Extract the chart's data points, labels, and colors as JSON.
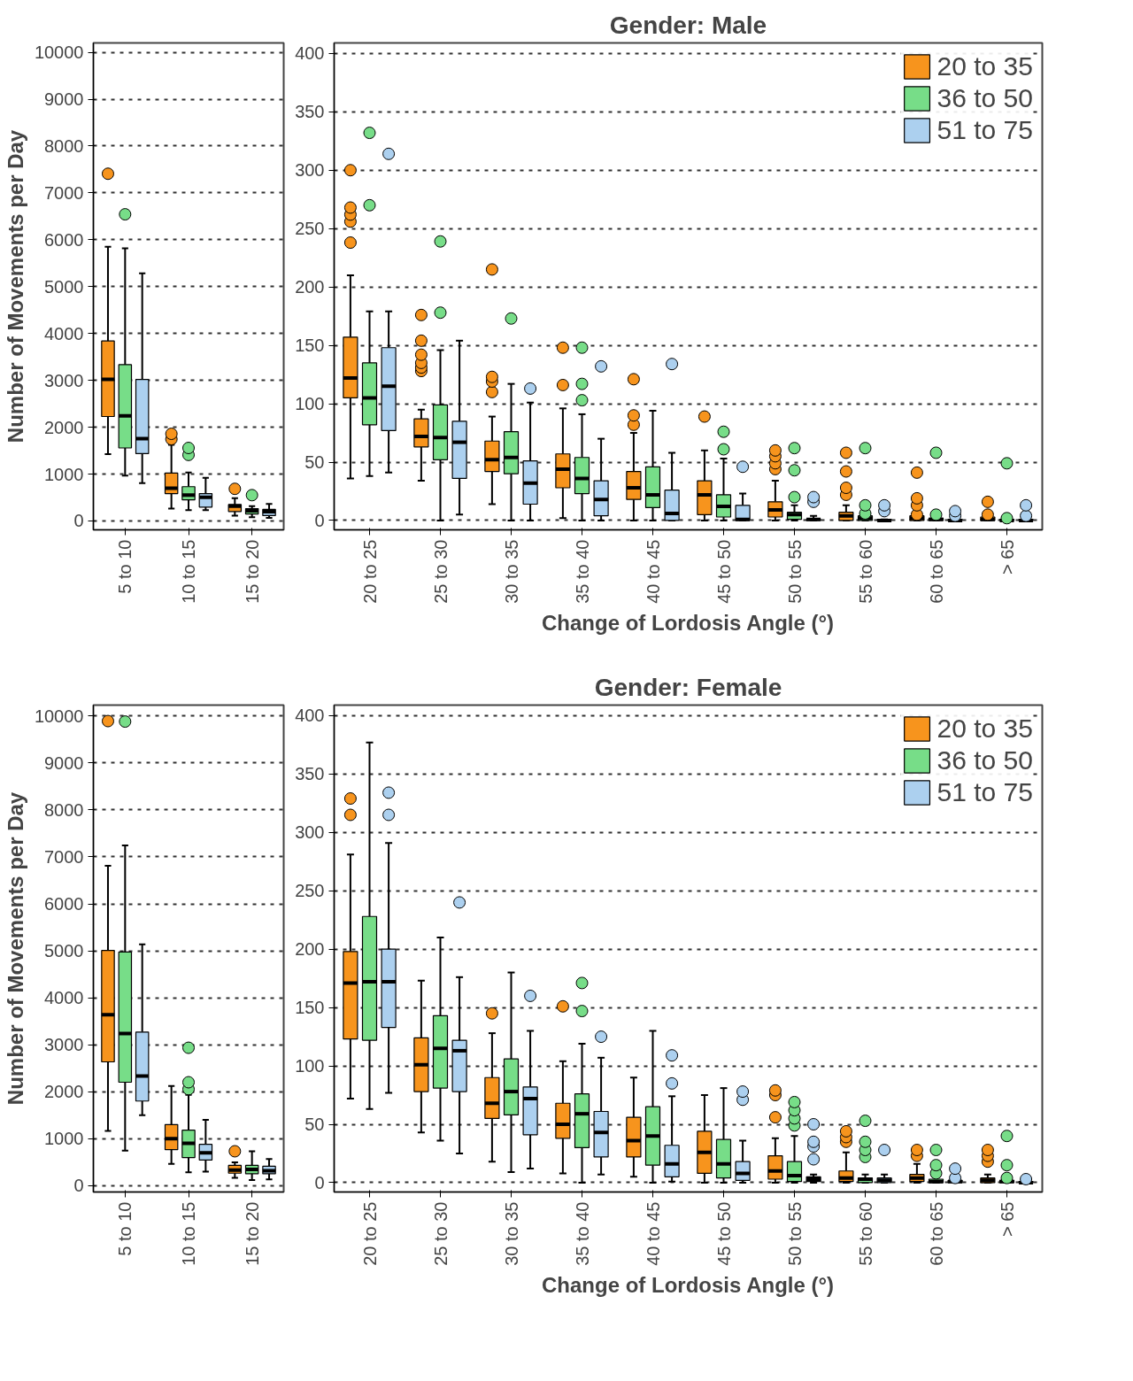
{
  "chart_data": [
    {
      "type": "box",
      "categories": [
        "5 to 10",
        "10 to 15",
        "15 to 20"
      ],
      "ylabel": "Number of Movements per Day",
      "ylim": [
        -190,
        10200
      ],
      "yticks": [
        0,
        1000,
        2000,
        3000,
        4000,
        5000,
        6000,
        7000,
        8000,
        9000,
        10000
      ],
      "grid": "y",
      "marker": "circle",
      "series": [
        {
          "color": "#f7941d",
          "boxes": [
            {
              "low": 1423,
              "q1": 2228,
              "median": 3020,
              "q3": 3839,
              "high": 5852,
              "outliers": [
                7409
              ]
            },
            {
              "low": 262,
              "q1": 584,
              "median": 698,
              "q3": 1020,
              "high": 1624,
              "outliers": [
                1745,
                1859
              ]
            },
            {
              "low": 114,
              "q1": 201,
              "median": 315,
              "q3": 349,
              "high": 483,
              "outliers": [
                685
              ]
            }
          ]
        },
        {
          "color": "#77dd88",
          "boxes": [
            {
              "low": 966,
              "q1": 1557,
              "median": 2241,
              "q3": 3335,
              "high": 5818,
              "outliers": [
                6543
              ]
            },
            {
              "low": 228,
              "q1": 450,
              "median": 550,
              "q3": 731,
              "high": 1033,
              "outliers": [
                1409,
                1557
              ]
            },
            {
              "low": 80,
              "q1": 148,
              "median": 215,
              "q3": 262,
              "high": 315,
              "outliers": [
                550
              ]
            }
          ]
        },
        {
          "color": "#acd0ef",
          "boxes": [
            {
              "low": 805,
              "q1": 1436,
              "median": 1758,
              "q3": 3020,
              "high": 5282
            },
            {
              "low": 228,
              "q1": 295,
              "median": 503,
              "q3": 584,
              "high": 919
            },
            {
              "low": 67,
              "q1": 114,
              "median": 195,
              "q3": 248,
              "high": 362
            }
          ]
        }
      ]
    },
    {
      "type": "box",
      "title": "Gender: Male",
      "xlabel": "Change of Lordosis Angle (°)",
      "categories": [
        "20 to 25",
        "25 to 30",
        "30 to 35",
        "35 to 40",
        "40 to 45",
        "45 to 50",
        "50 to 55",
        "55 to 60",
        "60 to 65",
        "> 65"
      ],
      "ylim": [
        -8,
        409
      ],
      "yticks": [
        0,
        50,
        100,
        150,
        200,
        250,
        300,
        350,
        400
      ],
      "grid": "y",
      "marker": "circle",
      "legend": "top right",
      "series": [
        {
          "name": "20 to 35",
          "color": "#f7941d",
          "boxes": [
            {
              "low": 36,
              "q1": 105,
              "median": 122,
              "q3": 157,
              "high": 210,
              "outliers": [
                238,
                256,
                262,
                268,
                300
              ]
            },
            {
              "low": 34,
              "q1": 63,
              "median": 72,
              "q3": 87,
              "high": 95,
              "outliers": [
                128,
                131,
                135,
                142,
                154,
                176
              ]
            },
            {
              "low": 14,
              "q1": 42,
              "median": 52,
              "q3": 68,
              "high": 89,
              "outliers": [
                110,
                119,
                123,
                215
              ]
            },
            {
              "low": 2,
              "q1": 28,
              "median": 44,
              "q3": 57,
              "high": 96,
              "outliers": [
                116,
                148
              ]
            },
            {
              "low": 0,
              "q1": 18,
              "median": 28,
              "q3": 42,
              "high": 75,
              "outliers": [
                82,
                90,
                121
              ]
            },
            {
              "low": 0,
              "q1": 5,
              "median": 22,
              "q3": 34,
              "high": 60,
              "outliers": [
                89
              ]
            },
            {
              "low": 0,
              "q1": 3,
              "median": 9,
              "q3": 16,
              "high": 34,
              "outliers": [
                44,
                49,
                55,
                60
              ]
            },
            {
              "low": 0,
              "q1": 0,
              "median": 4,
              "q3": 7,
              "high": 13,
              "outliers": [
                22,
                28,
                42,
                58
              ]
            },
            {
              "low": 0,
              "q1": 0,
              "median": 2,
              "q3": 4,
              "high": 4,
              "outliers": [
                5,
                13,
                19,
                41
              ]
            },
            {
              "low": 0,
              "q1": 0,
              "median": 1,
              "q3": 3,
              "high": 4,
              "outliers": [
                5,
                16
              ]
            }
          ]
        },
        {
          "name": "36 to 50",
          "color": "#77dd88",
          "boxes": [
            {
              "low": 38,
              "q1": 82,
              "median": 105,
              "q3": 135,
              "high": 179,
              "outliers": [
                270,
                332
              ]
            },
            {
              "low": 0,
              "q1": 52,
              "median": 71,
              "q3": 99,
              "high": 146,
              "outliers": [
                178,
                239
              ]
            },
            {
              "low": 0,
              "q1": 40,
              "median": 54,
              "q3": 76,
              "high": 117,
              "outliers": [
                173
              ]
            },
            {
              "low": 0,
              "q1": 23,
              "median": 36,
              "q3": 54,
              "high": 91,
              "outliers": [
                103,
                117,
                148
              ]
            },
            {
              "low": 0,
              "q1": 11,
              "median": 22,
              "q3": 46,
              "high": 94
            },
            {
              "low": 0,
              "q1": 3,
              "median": 12,
              "q3": 22,
              "high": 53,
              "outliers": [
                61,
                76
              ]
            },
            {
              "low": 0,
              "q1": 1,
              "median": 5,
              "q3": 7,
              "high": 13,
              "outliers": [
                20,
                43,
                62
              ]
            },
            {
              "low": 0,
              "q1": 0,
              "median": 2,
              "q3": 4,
              "high": 5,
              "outliers": [
                6,
                13,
                62
              ]
            },
            {
              "low": 0,
              "q1": 0,
              "median": 1,
              "q3": 2,
              "high": 3,
              "outliers": [
                5,
                58
              ]
            },
            {
              "low": 0,
              "q1": 0,
              "median": 0,
              "q3": 1,
              "high": 1,
              "outliers": [
                2,
                49
              ]
            }
          ]
        },
        {
          "name": "51 to 75",
          "color": "#acd0ef",
          "boxes": [
            {
              "low": 41,
              "q1": 77,
              "median": 115,
              "q3": 148,
              "high": 179,
              "outliers": [
                314
              ]
            },
            {
              "low": 5,
              "q1": 36,
              "median": 67,
              "q3": 85,
              "high": 154
            },
            {
              "low": 0,
              "q1": 14,
              "median": 32,
              "q3": 51,
              "high": 101,
              "outliers": [
                113
              ]
            },
            {
              "low": 0,
              "q1": 4,
              "median": 18,
              "q3": 34,
              "high": 70,
              "outliers": [
                132
              ]
            },
            {
              "low": 0,
              "q1": 0,
              "median": 6,
              "q3": 26,
              "high": 58,
              "outliers": [
                134
              ]
            },
            {
              "low": 0,
              "q1": 0,
              "median": 1,
              "q3": 13,
              "high": 23,
              "outliers": [
                46
              ]
            },
            {
              "low": 0,
              "q1": 0,
              "median": 1,
              "q3": 1,
              "high": 4,
              "outliers": [
                16,
                20
              ]
            },
            {
              "low": 0,
              "q1": 0,
              "median": 0,
              "q3": 1,
              "high": 1,
              "outliers": [
                8,
                13
              ]
            },
            {
              "low": 0,
              "q1": 0,
              "median": 0,
              "q3": 1,
              "high": 1,
              "outliers": [
                4,
                8
              ]
            },
            {
              "low": 0,
              "q1": 0,
              "median": 0,
              "q3": 1,
              "high": 1,
              "outliers": [
                4,
                13
              ]
            }
          ]
        }
      ]
    },
    {
      "type": "box",
      "categories": [
        "5 to 10",
        "10 to 15",
        "15 to 20"
      ],
      "ylabel": "Number of Movements per Day",
      "ylim": [
        -133,
        10230
      ],
      "yticks": [
        0,
        1000,
        2000,
        3000,
        4000,
        5000,
        6000,
        7000,
        8000,
        9000,
        10000
      ],
      "grid": "y",
      "marker": "circle",
      "series": [
        {
          "color": "#f7941d",
          "boxes": [
            {
              "low": 1168,
              "q1": 2637,
              "median": 3638,
              "q3": 5007,
              "high": 6810,
              "outliers": [
                9890
              ]
            },
            {
              "low": 467,
              "q1": 768,
              "median": 1001,
              "q3": 1302,
              "high": 2123
            },
            {
              "low": 167,
              "q1": 267,
              "median": 334,
              "q3": 434,
              "high": 500,
              "outliers": [
                734
              ]
            }
          ]
        },
        {
          "color": "#77dd88",
          "boxes": [
            {
              "low": 748,
              "q1": 2203,
              "median": 3238,
              "q3": 4974,
              "high": 7243,
              "outliers": [
                9880
              ]
            },
            {
              "low": 287,
              "q1": 601,
              "median": 901,
              "q3": 1182,
              "high": 1936,
              "outliers": [
                2056,
                2203,
                2937
              ]
            },
            {
              "low": 120,
              "q1": 254,
              "median": 347,
              "q3": 434,
              "high": 734
            }
          ]
        },
        {
          "color": "#acd0ef",
          "boxes": [
            {
              "low": 1502,
              "q1": 1803,
              "median": 2337,
              "q3": 3271,
              "high": 5140
            },
            {
              "low": 300,
              "q1": 547,
              "median": 701,
              "q3": 881,
              "high": 1402
            },
            {
              "low": 134,
              "q1": 254,
              "median": 320,
              "q3": 414,
              "high": 567
            }
          ]
        }
      ]
    },
    {
      "type": "box",
      "title": "Gender: Female",
      "xlabel": "Change of Lordosis Angle (°)",
      "categories": [
        "20 to 25",
        "25 to 30",
        "30 to 35",
        "35 to 40",
        "40 to 45",
        "45 to 50",
        "50 to 55",
        "55 to 60",
        "60 to 65",
        "> 65"
      ],
      "ylim": [
        -8,
        409
      ],
      "yticks": [
        0,
        50,
        100,
        150,
        200,
        250,
        300,
        350,
        400
      ],
      "grid": "y",
      "marker": "circle",
      "legend": "top right",
      "series": [
        {
          "name": "20 to 35",
          "color": "#f7941d",
          "boxes": [
            {
              "low": 72,
              "q1": 123,
              "median": 171,
              "q3": 198,
              "high": 281,
              "outliers": [
                315,
                329
              ]
            },
            {
              "low": 43,
              "q1": 78,
              "median": 101,
              "q3": 124,
              "high": 173
            },
            {
              "low": 18,
              "q1": 55,
              "median": 68,
              "q3": 90,
              "high": 128,
              "outliers": [
                145
              ]
            },
            {
              "low": 8,
              "q1": 38,
              "median": 50,
              "q3": 68,
              "high": 104,
              "outliers": [
                151
              ]
            },
            {
              "low": 5,
              "q1": 22,
              "median": 36,
              "q3": 56,
              "high": 90
            },
            {
              "low": 0,
              "q1": 8,
              "median": 26,
              "q3": 44,
              "high": 75
            },
            {
              "low": 0,
              "q1": 3,
              "median": 10,
              "q3": 23,
              "high": 38,
              "outliers": [
                56,
                75,
                79
              ]
            },
            {
              "low": 0,
              "q1": 1,
              "median": 4,
              "q3": 10,
              "high": 26,
              "outliers": [
                35,
                39,
                44
              ]
            },
            {
              "low": 0,
              "q1": 1,
              "median": 4,
              "q3": 7,
              "high": 16,
              "outliers": [
                23,
                28
              ]
            },
            {
              "low": 0,
              "q1": 0,
              "median": 2,
              "q3": 4,
              "high": 7,
              "outliers": [
                18,
                23,
                28
              ]
            }
          ]
        },
        {
          "name": "36 to 50",
          "color": "#77dd88",
          "boxes": [
            {
              "low": 63,
              "q1": 122,
              "median": 172,
              "q3": 228,
              "high": 377
            },
            {
              "low": 36,
              "q1": 81,
              "median": 115,
              "q3": 143,
              "high": 210
            },
            {
              "low": 9,
              "q1": 58,
              "median": 78,
              "q3": 106,
              "high": 180
            },
            {
              "low": 0,
              "q1": 30,
              "median": 59,
              "q3": 76,
              "high": 119,
              "outliers": [
                147,
                171
              ]
            },
            {
              "low": 0,
              "q1": 15,
              "median": 40,
              "q3": 65,
              "high": 130
            },
            {
              "low": 0,
              "q1": 4,
              "median": 16,
              "q3": 37,
              "high": 81
            },
            {
              "low": 0,
              "q1": 1,
              "median": 6,
              "q3": 18,
              "high": 40,
              "outliers": [
                49,
                55,
                62,
                69
              ]
            },
            {
              "low": 0,
              "q1": 0,
              "median": 3,
              "q3": 4,
              "high": 7,
              "outliers": [
                22,
                28,
                35,
                53
              ]
            },
            {
              "low": 0,
              "q1": 0,
              "median": 1,
              "q3": 3,
              "high": 5,
              "outliers": [
                8,
                15,
                28
              ]
            },
            {
              "low": 0,
              "q1": 0,
              "median": 1,
              "q3": 2,
              "high": 3,
              "outliers": [
                4,
                15,
                40
              ]
            }
          ]
        },
        {
          "name": "51 to 75",
          "color": "#acd0ef",
          "boxes": [
            {
              "low": 77,
              "q1": 133,
              "median": 172,
              "q3": 200,
              "high": 291,
              "outliers": [
                315,
                334
              ]
            },
            {
              "low": 25,
              "q1": 78,
              "median": 113,
              "q3": 122,
              "high": 176,
              "outliers": [
                240
              ]
            },
            {
              "low": 12,
              "q1": 41,
              "median": 72,
              "q3": 82,
              "high": 130,
              "outliers": [
                160
              ]
            },
            {
              "low": 7,
              "q1": 22,
              "median": 43,
              "q3": 61,
              "high": 107,
              "outliers": [
                125
              ]
            },
            {
              "low": 1,
              "q1": 5,
              "median": 16,
              "q3": 32,
              "high": 74,
              "outliers": [
                85,
                109
              ]
            },
            {
              "low": 0,
              "q1": 2,
              "median": 8,
              "q3": 18,
              "high": 36,
              "outliers": [
                71,
                78
              ]
            },
            {
              "low": 0,
              "q1": 1,
              "median": 3,
              "q3": 5,
              "high": 7,
              "outliers": [
                20,
                31,
                35,
                50
              ]
            },
            {
              "low": 0,
              "q1": 0,
              "median": 2,
              "q3": 4,
              "high": 7,
              "outliers": [
                28
              ]
            },
            {
              "low": 0,
              "q1": 0,
              "median": 1,
              "q3": 2,
              "high": 3,
              "outliers": [
                4,
                12
              ]
            },
            {
              "low": 0,
              "q1": 0,
              "median": 0,
              "q3": 1,
              "high": 1,
              "outliers": [
                3
              ]
            }
          ]
        }
      ]
    }
  ]
}
